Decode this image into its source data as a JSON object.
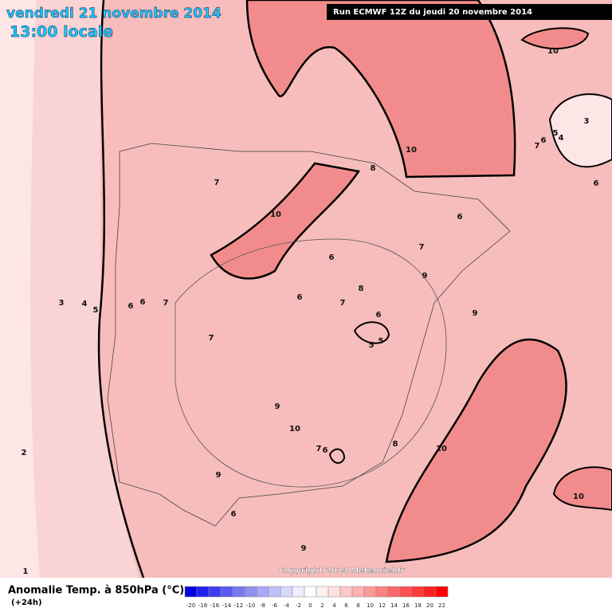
{
  "header": {
    "date": "vendredi 21 novembre 2014",
    "time": "13:00 locale",
    "run": "Run ECMWF 12Z du jeudi 20 novembre 2014"
  },
  "footer": {
    "title": "Anomalie Temp. à 850hPa (°C)",
    "lead": "(+24h)",
    "copyright": "Copyright 2014 Meteociel.fr"
  },
  "legend": {
    "values": [
      -20,
      -18,
      -16,
      -14,
      -12,
      -10,
      -8,
      -6,
      -4,
      -2,
      0,
      2,
      4,
      6,
      8,
      10,
      12,
      14,
      16,
      18,
      20,
      22
    ],
    "colors": [
      "#0000e0",
      "#2020f0",
      "#3c3cf0",
      "#5a5af0",
      "#7878f0",
      "#9090f0",
      "#a8a8f5",
      "#c0c0f8",
      "#d8d8fb",
      "#eeeefe",
      "#ffffff",
      "#fff0f0",
      "#ffe0e0",
      "#ffc8c8",
      "#ffb0b0",
      "#ff9898",
      "#ff8080",
      "#ff6868",
      "#ff5050",
      "#ff3838",
      "#ff2020",
      "#ff0000"
    ]
  },
  "contour_labels": [
    10,
    10,
    5,
    4,
    3,
    7,
    6,
    6,
    8,
    7,
    10,
    6,
    7,
    6,
    9,
    8,
    6,
    7,
    9,
    6,
    5,
    5,
    7,
    3,
    4,
    5,
    6,
    6,
    7,
    9,
    10,
    7,
    6,
    8,
    10,
    2,
    9,
    6,
    10,
    9,
    1
  ]
}
